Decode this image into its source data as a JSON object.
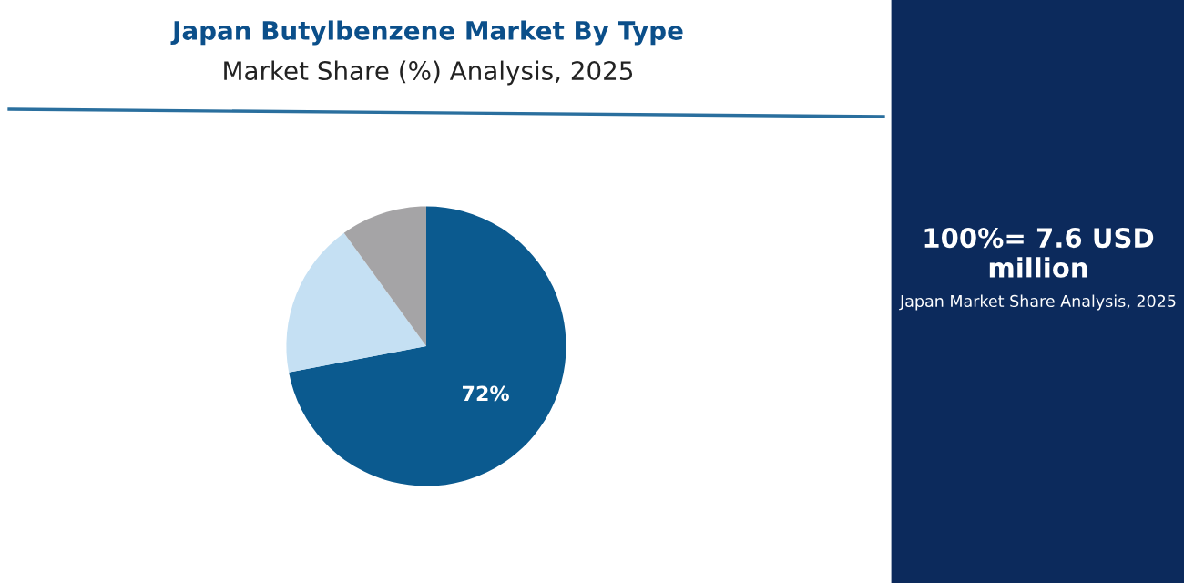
{
  "chart_data": {
    "type": "pie",
    "title": "Japan Butylbenzene Market By Type",
    "subtitle": "Market Share (%) Analysis, 2025",
    "categories": [
      null,
      null,
      null
    ],
    "values": [
      72,
      18,
      10
    ],
    "colors": [
      "#0b5a8f",
      "#c5e0f3",
      "#a5a4a6"
    ],
    "value_labels": [
      "72%",
      null,
      null
    ],
    "annotations": [
      "100%= 7.6 USD million",
      "Japan Market Share Analysis, 2025"
    ]
  }
}
